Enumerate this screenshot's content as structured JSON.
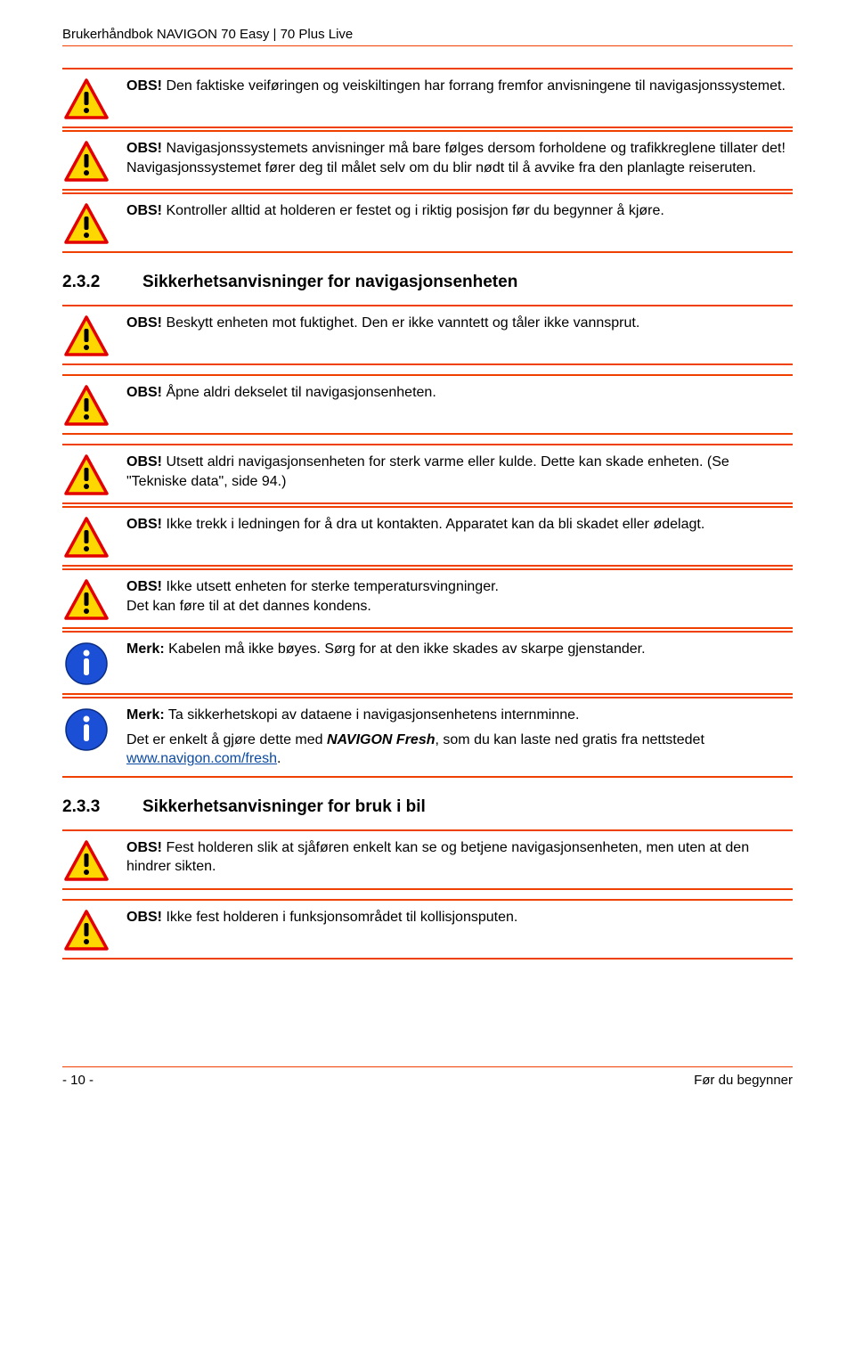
{
  "header": {
    "title": "Brukerhåndbok NAVIGON 70 Easy | 70 Plus Live"
  },
  "colors": {
    "rule": "#f04000",
    "warn_border": "#e30000",
    "warn_fill": "#ffd700",
    "info_fill": "#1b4fd6",
    "info_inner": "#ffffff",
    "text": "#000000",
    "link": "#0b4aa2"
  },
  "labels": {
    "obs": "OBS!",
    "merk": "Merk:"
  },
  "notices_top": [
    {
      "icon": "warn",
      "prefix_key": "obs",
      "text": "Den faktiske veiføringen og veiskiltingen har forrang fremfor anvisningene til navigasjonssystemet."
    },
    {
      "icon": "warn",
      "prefix_key": "obs",
      "text": "Navigasjonssystemets anvisninger må bare følges dersom forholdene og trafikkreglene tillater det! Navigasjonssystemet fører deg til målet selv om du blir nødt til å avvike fra den planlagte reiseruten."
    },
    {
      "icon": "warn",
      "prefix_key": "obs",
      "text": "Kontroller alltid at holderen er festet og i riktig posisjon før du begynner å kjøre."
    }
  ],
  "section_232": {
    "num": "2.3.2",
    "title": "Sikkerhetsanvisninger for navigasjonsenheten"
  },
  "notices_232": [
    {
      "icon": "warn",
      "prefix_key": "obs",
      "text": "Beskytt enheten mot fuktighet. Den er ikke vanntett og tåler ikke vannsprut."
    },
    {
      "icon": "warn",
      "prefix_key": "obs",
      "text": "Åpne aldri dekselet til navigasjonsenheten."
    },
    {
      "icon": "warn",
      "prefix_key": "obs",
      "text": "Utsett aldri navigasjonsenheten for sterk varme eller kulde. Dette kan skade enheten. (Se \"Tekniske data\", side 94.)"
    },
    {
      "icon": "warn",
      "prefix_key": "obs",
      "text": "Ikke trekk i ledningen for å dra ut kontakten. Apparatet kan da bli skadet eller ødelagt."
    },
    {
      "icon": "warn",
      "prefix_key": "obs",
      "text_multi": [
        "Ikke utsett enheten for sterke temperatursvingninger.",
        "Det kan føre til at det dannes kondens."
      ]
    },
    {
      "icon": "info",
      "prefix_key": "merk",
      "text": "Kabelen må ikke bøyes. Sørg for at den ikke skades av skarpe gjenstander."
    },
    {
      "icon": "info",
      "prefix_key": "merk",
      "rich": true,
      "p1_prefix": "Merk:",
      "p1_rest": "Ta sikkerhetskopi av dataene i navigasjonsenhetens internminne.",
      "p2_a": "Det er enkelt å gjøre dette med ",
      "p2_brand": "NAVIGON Fresh",
      "p2_b": ", som du kan laste ned gratis fra nettstedet ",
      "p2_link": "www.navigon.com/fresh",
      "p2_c": "."
    }
  ],
  "section_233": {
    "num": "2.3.3",
    "title": "Sikkerhetsanvisninger for bruk i bil"
  },
  "notices_233": [
    {
      "icon": "warn",
      "prefix_key": "obs",
      "text": "Fest holderen slik at sjåføren enkelt kan se og betjene navigasjonsenheten, men uten at den hindrer sikten."
    },
    {
      "icon": "warn",
      "prefix_key": "obs",
      "text": "Ikke fest holderen i funksjonsområdet til kollisjonsputen."
    }
  ],
  "footer": {
    "page": "- 10 -",
    "section": "Før du begynner"
  }
}
